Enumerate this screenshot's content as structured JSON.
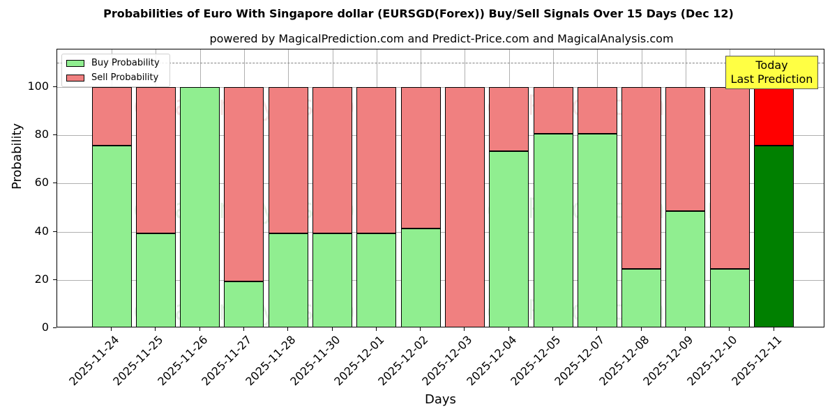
{
  "header": {
    "title": "Probabilities of Euro With Singapore dollar (EURSGD(Forex)) Buy/Sell Signals Over 15 Days (Dec 12)",
    "subtitle": "powered by MagicalPrediction.com and Predict-Price.com and MagicalAnalysis.com"
  },
  "axes": {
    "xlabel": "Days",
    "ylabel": "Probability",
    "yticks": [
      "0",
      "20",
      "40",
      "60",
      "80",
      "100"
    ]
  },
  "legend": {
    "buy_label": "Buy Probability",
    "sell_label": "Sell Probability"
  },
  "annotation": {
    "line1": "Today",
    "line2": "Last Prediction"
  },
  "watermarks": [
    "MagicalAnalysis.com",
    "MagicalPrediction.com"
  ],
  "colors": {
    "buy": "#90ee90",
    "sell": "#f08080",
    "buy_today": "#008000",
    "sell_today": "#ff0000",
    "annotation_bg": "#ffff44",
    "threshold_line": "#808080"
  },
  "chart_data": {
    "type": "bar",
    "stacked": true,
    "title": "Probabilities of Euro With Singapore dollar (EURSGD(Forex)) Buy/Sell Signals Over 15 Days (Dec 12)",
    "subtitle": "powered by MagicalPrediction.com and Predict-Price.com and MagicalAnalysis.com",
    "xlabel": "Days",
    "ylabel": "Probability",
    "ylim": [
      0,
      115
    ],
    "yticks": [
      0,
      20,
      40,
      60,
      80,
      100
    ],
    "grid": true,
    "legend_position": "upper left",
    "threshold_line": 110,
    "categories": [
      "2025-11-24",
      "2025-11-25",
      "2025-11-26",
      "2025-11-27",
      "2025-11-28",
      "2025-11-30",
      "2025-12-01",
      "2025-12-02",
      "2025-12-03",
      "2025-12-04",
      "2025-12-05",
      "2025-12-07",
      "2025-12-08",
      "2025-12-09",
      "2025-12-10",
      "2025-12-11"
    ],
    "series": [
      {
        "name": "Buy Probability",
        "values": [
          75.7,
          39.3,
          100,
          19.4,
          39.3,
          39.3,
          39.3,
          41.3,
          0,
          73.4,
          80.6,
          80.6,
          24.6,
          48.6,
          24.6,
          75.7
        ]
      },
      {
        "name": "Sell Probability",
        "values": [
          24.3,
          60.7,
          0,
          80.6,
          60.7,
          60.7,
          60.7,
          58.7,
          100,
          26.6,
          19.4,
          19.4,
          75.4,
          51.4,
          75.4,
          24.3
        ]
      }
    ],
    "annotations": [
      {
        "text": "Today\nLast Prediction",
        "x": "2025-12-11"
      }
    ]
  }
}
